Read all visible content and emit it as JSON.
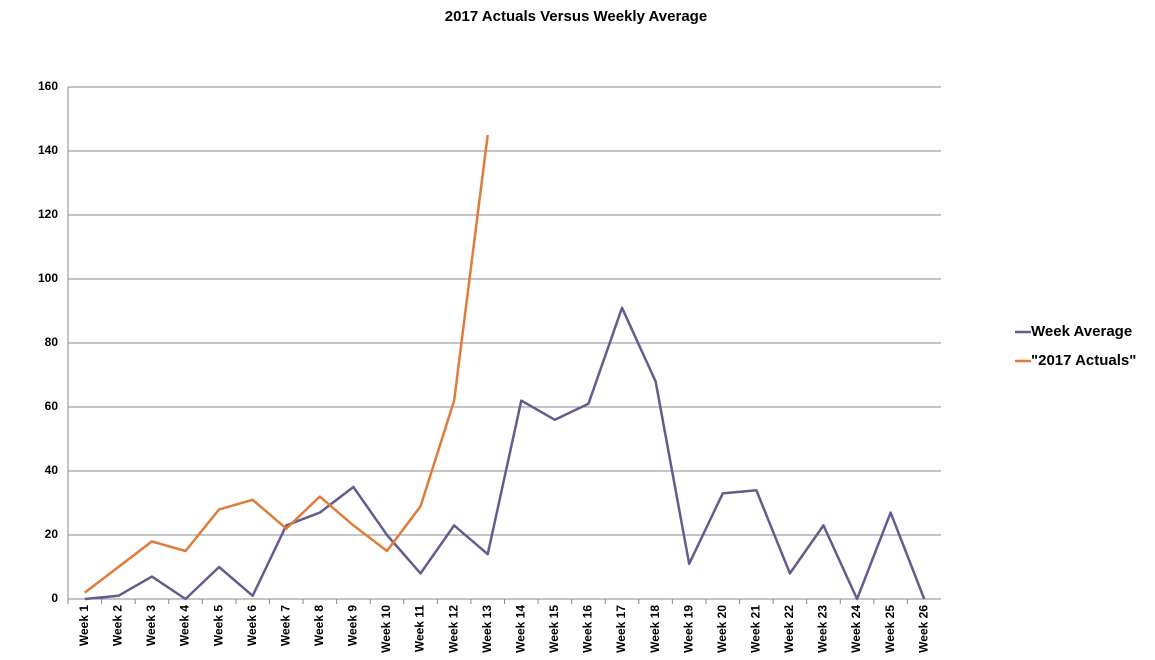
{
  "chart_data": {
    "type": "line",
    "title": "2017 Actuals Versus Weekly Average",
    "categories": [
      "Week 1",
      "Week 2",
      "Week 3",
      "Week 4",
      "Week 5",
      "Week 6",
      "Week 7",
      "Week 8",
      "Week 9",
      "Week 10",
      "Week 11",
      "Week 12",
      "Week 13",
      "Week 14",
      "Week 15",
      "Week 16",
      "Week 17",
      "Week 18",
      "Week 19",
      "Week 20",
      "Week 21",
      "Week 22",
      "Week 23",
      "Week 24",
      "Week 25",
      "Week 26"
    ],
    "series": [
      {
        "name": "Week Average",
        "color": "#625d8e",
        "values": [
          0,
          1,
          7,
          0,
          10,
          1,
          23,
          27,
          35,
          20,
          8,
          23,
          14,
          62,
          56,
          61,
          91,
          68,
          11,
          33,
          34,
          8,
          23,
          0,
          27,
          0
        ]
      },
      {
        "name": "\"2017 Actuals\"",
        "color": "#e07b39",
        "values": [
          2,
          10,
          18,
          15,
          28,
          31,
          22,
          32,
          23,
          15,
          29,
          62,
          145,
          null,
          null,
          null,
          null,
          null,
          null,
          null,
          null,
          null,
          null,
          null,
          null,
          null
        ]
      }
    ],
    "ylim": [
      0,
      160
    ],
    "yticks": [
      0,
      20,
      40,
      60,
      80,
      100,
      120,
      140,
      160
    ],
    "grid": true,
    "legend": "right"
  }
}
